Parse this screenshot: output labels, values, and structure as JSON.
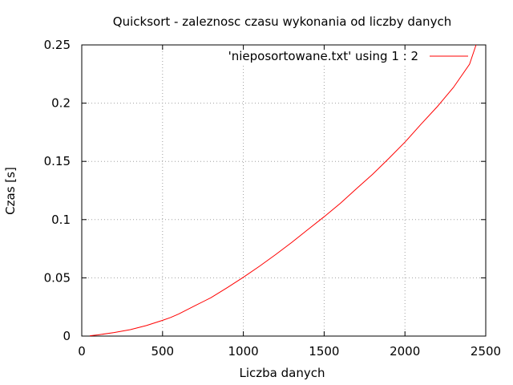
{
  "chart_data": {
    "type": "line",
    "title": "Quicksort - zaleznosc czasu wykonania od liczby danych",
    "xlabel": "Liczba danych",
    "ylabel": "Czas [s]",
    "xlim": [
      0,
      2500
    ],
    "ylim": [
      0,
      0.25
    ],
    "x_ticks": [
      0,
      500,
      1000,
      1500,
      2000,
      2500
    ],
    "y_ticks": [
      0,
      0.05,
      0.1,
      0.15,
      0.2,
      0.25
    ],
    "x_tick_labels": [
      "0",
      "500",
      "1000",
      "1500",
      "2000",
      "2500"
    ],
    "y_tick_labels": [
      "0",
      "0.05",
      "0.1",
      "0.15",
      "0.2",
      "0.25"
    ],
    "grid": true,
    "legend_position": "top-right",
    "series": [
      {
        "name": "'nieposortowane.txt' using 1 : 2",
        "color": "#ff0000",
        "x": [
          50,
          100,
          200,
          300,
          400,
          500,
          550,
          600,
          700,
          800,
          900,
          1000,
          1100,
          1200,
          1300,
          1400,
          1500,
          1600,
          1700,
          1800,
          1900,
          2000,
          2100,
          2200,
          2300,
          2400,
          2440
        ],
        "y": [
          0.0003,
          0.001,
          0.003,
          0.0055,
          0.009,
          0.0135,
          0.016,
          0.019,
          0.026,
          0.033,
          0.0415,
          0.0505,
          0.06,
          0.07,
          0.0805,
          0.0915,
          0.1025,
          0.114,
          0.1265,
          0.139,
          0.1525,
          0.1665,
          0.182,
          0.197,
          0.2135,
          0.2335,
          0.25
        ]
      }
    ]
  }
}
